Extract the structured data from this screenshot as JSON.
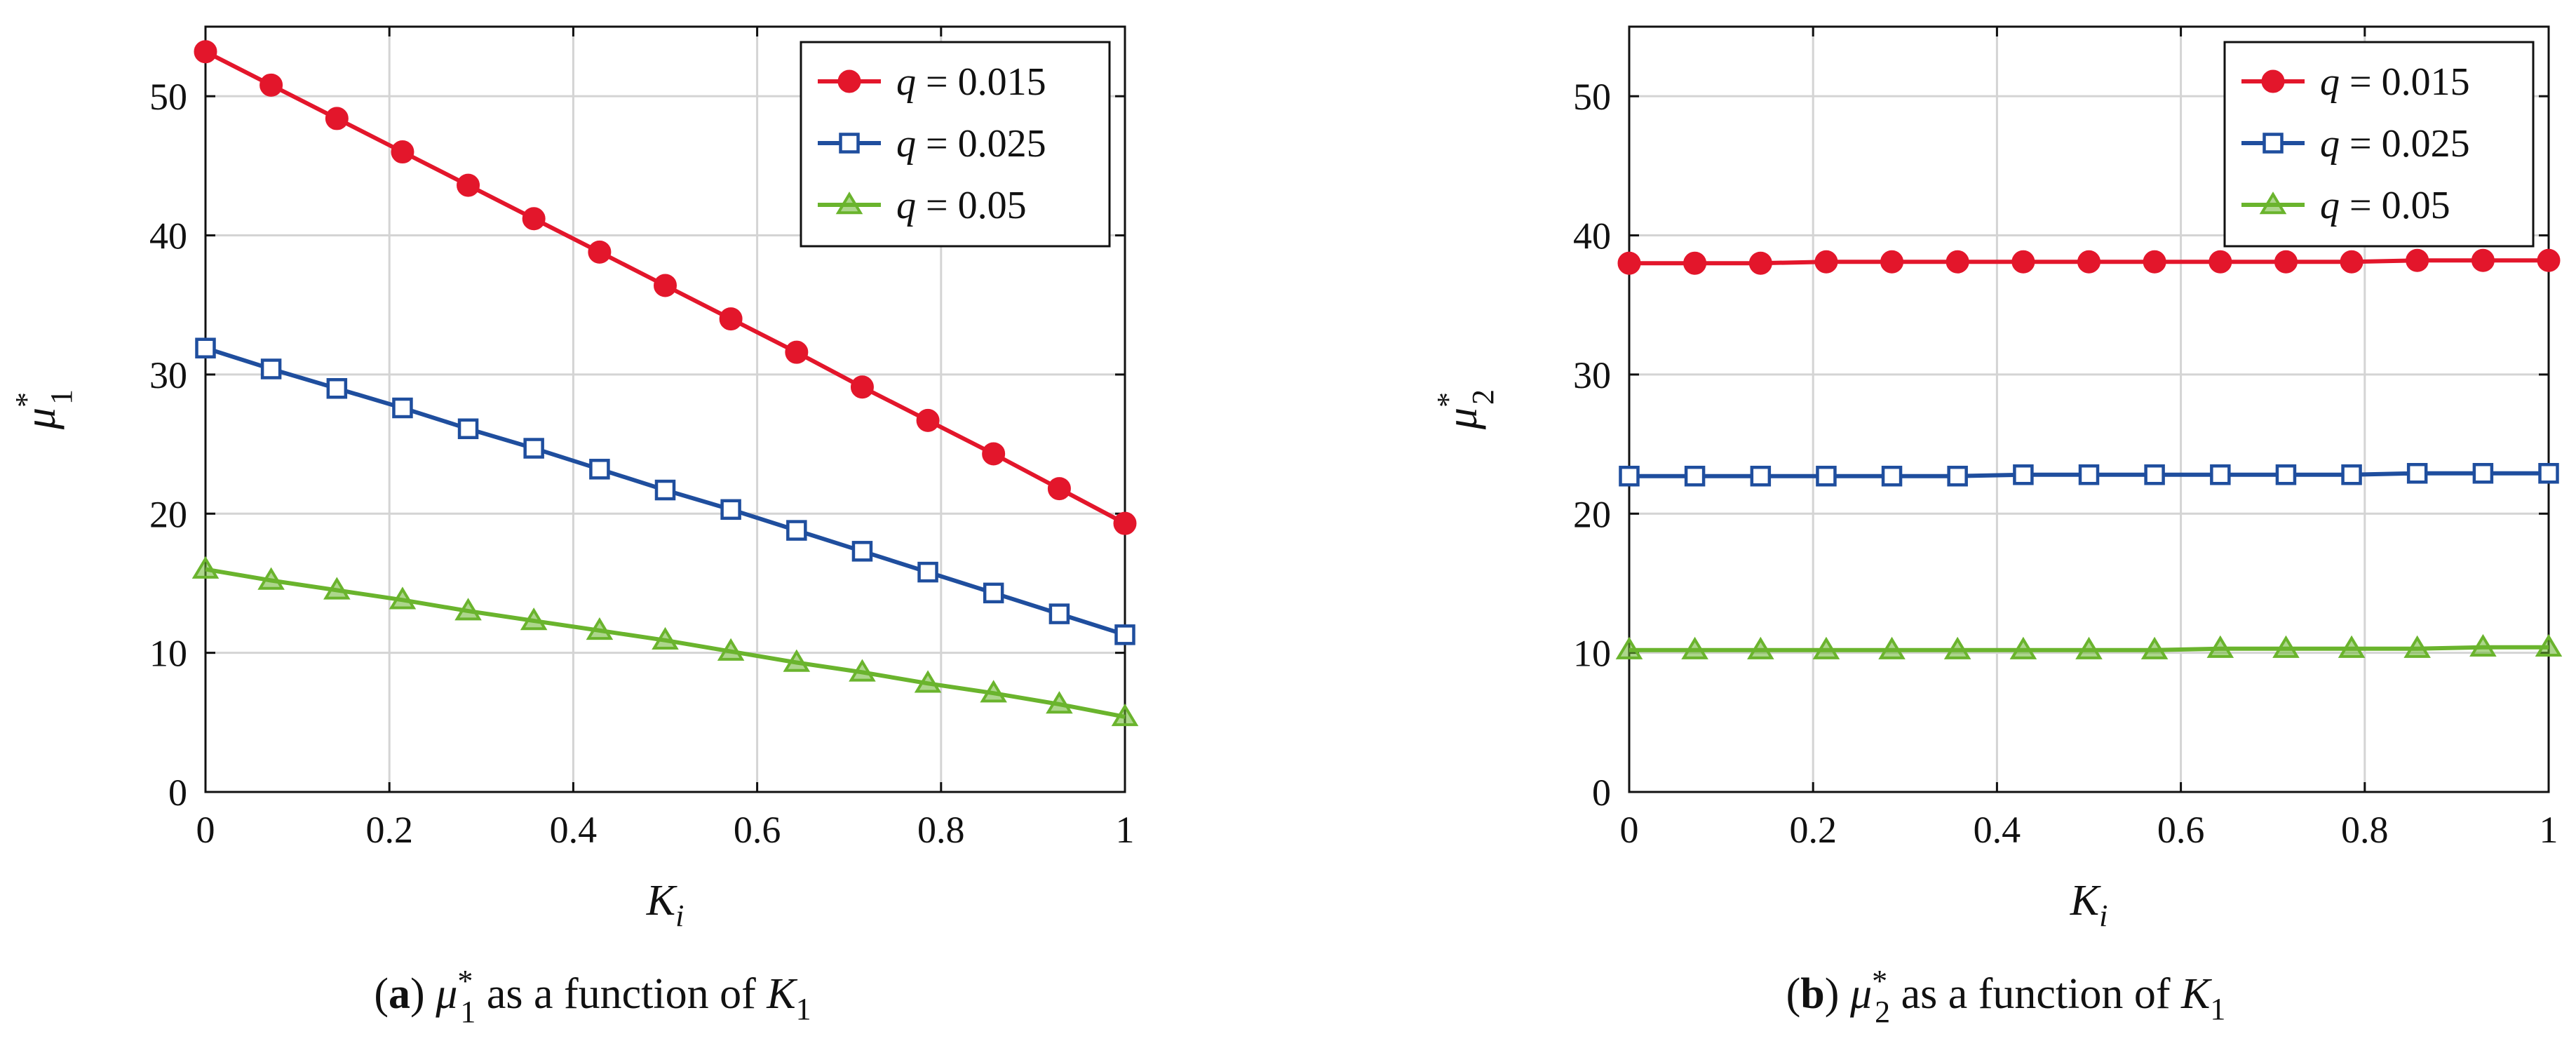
{
  "chart_data": [
    {
      "type": "line",
      "panel_label": "a",
      "caption": "μ₁* as a function of K₁",
      "caption_parts": {
        "label": "a",
        "symbol": "μ",
        "sup": "*",
        "sub": "1",
        "text": " as a function of ",
        "var": "K",
        "var_sub": "1"
      },
      "xlabel": {
        "main": "K",
        "sub": "i"
      },
      "ylabel": {
        "main": "μ",
        "sup": "*",
        "sub": "1"
      },
      "xlim": [
        0,
        1
      ],
      "ylim": [
        0,
        55
      ],
      "xticks": [
        0,
        0.2,
        0.4,
        0.6,
        0.8,
        1
      ],
      "xtick_labels": [
        "0",
        "0.2",
        "0.4",
        "0.6",
        "0.8",
        "1"
      ],
      "yticks": [
        0,
        10,
        20,
        30,
        40,
        50
      ],
      "ytick_labels": [
        "0",
        "10",
        "20",
        "30",
        "40",
        "50"
      ],
      "grid": true,
      "legend_position": "top-right",
      "x": [
        0,
        0.0714,
        0.1429,
        0.2143,
        0.2857,
        0.3571,
        0.4286,
        0.5,
        0.5714,
        0.6429,
        0.7143,
        0.7857,
        0.8571,
        0.9286,
        1.0
      ],
      "series": [
        {
          "name": "q = 0.015",
          "var": "q",
          "value_label": "= 0.015",
          "color": "#e3162b",
          "marker": "circle",
          "values": [
            53.2,
            50.8,
            48.4,
            46.0,
            43.6,
            41.2,
            38.8,
            36.4,
            34.0,
            31.6,
            29.1,
            26.7,
            24.3,
            21.8,
            19.3
          ]
        },
        {
          "name": "q = 0.025",
          "var": "q",
          "value_label": "= 0.025",
          "color": "#1f4e9e",
          "marker": "square",
          "values": [
            31.9,
            30.4,
            29.0,
            27.6,
            26.1,
            24.7,
            23.2,
            21.7,
            20.3,
            18.8,
            17.3,
            15.8,
            14.3,
            12.8,
            11.3
          ]
        },
        {
          "name": "q = 0.05",
          "var": "q",
          "value_label": "= 0.05",
          "color": "#6ab42d",
          "marker": "triangle",
          "values": [
            16.0,
            15.2,
            14.5,
            13.8,
            13.0,
            12.3,
            11.6,
            10.9,
            10.1,
            9.3,
            8.6,
            7.8,
            7.1,
            6.3,
            5.4
          ]
        }
      ]
    },
    {
      "type": "line",
      "panel_label": "b",
      "caption": "μ₂* as a function of K₁",
      "caption_parts": {
        "label": "b",
        "symbol": "μ",
        "sup": "*",
        "sub": "2",
        "text": " as a function of ",
        "var": "K",
        "var_sub": "1"
      },
      "xlabel": {
        "main": "K",
        "sub": "i"
      },
      "ylabel": {
        "main": "μ",
        "sup": "*",
        "sub": "2"
      },
      "xlim": [
        0,
        1
      ],
      "ylim": [
        0,
        55
      ],
      "xticks": [
        0,
        0.2,
        0.4,
        0.6,
        0.8,
        1
      ],
      "xtick_labels": [
        "0",
        "0.2",
        "0.4",
        "0.6",
        "0.8",
        "1"
      ],
      "yticks": [
        0,
        10,
        20,
        30,
        40,
        50
      ],
      "ytick_labels": [
        "0",
        "10",
        "20",
        "30",
        "40",
        "50"
      ],
      "grid": true,
      "legend_position": "top-right",
      "x": [
        0,
        0.0714,
        0.1429,
        0.2143,
        0.2857,
        0.3571,
        0.4286,
        0.5,
        0.5714,
        0.6429,
        0.7143,
        0.7857,
        0.8571,
        0.9286,
        1.0
      ],
      "series": [
        {
          "name": "q = 0.015",
          "var": "q",
          "value_label": "= 0.015",
          "color": "#e3162b",
          "marker": "circle",
          "values": [
            38.0,
            38.0,
            38.0,
            38.1,
            38.1,
            38.1,
            38.1,
            38.1,
            38.1,
            38.1,
            38.1,
            38.1,
            38.2,
            38.2,
            38.2
          ]
        },
        {
          "name": "q = 0.025",
          "var": "q",
          "value_label": "= 0.025",
          "color": "#1f4e9e",
          "marker": "square",
          "values": [
            22.7,
            22.7,
            22.7,
            22.7,
            22.7,
            22.7,
            22.8,
            22.8,
            22.8,
            22.8,
            22.8,
            22.8,
            22.9,
            22.9,
            22.9
          ]
        },
        {
          "name": "q = 0.05",
          "var": "q",
          "value_label": "= 0.05",
          "color": "#6ab42d",
          "marker": "triangle",
          "values": [
            10.2,
            10.2,
            10.2,
            10.2,
            10.2,
            10.2,
            10.2,
            10.2,
            10.2,
            10.3,
            10.3,
            10.3,
            10.3,
            10.4,
            10.4
          ]
        }
      ]
    }
  ]
}
